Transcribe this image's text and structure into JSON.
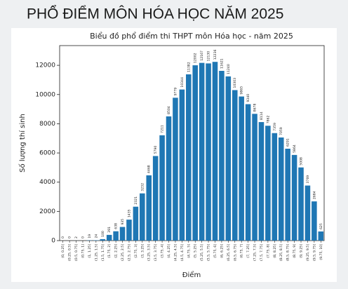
{
  "header": {
    "title": "PHỔ ĐIỂM MÔN HÓA HỌC NĂM 2025"
  },
  "chart_data": {
    "type": "bar",
    "title": "Biểu đồ phổ điểm thi THPT môn Hóa học - năm 2025",
    "xlabel": "Điểm",
    "ylabel": "Số lượng thí sinh",
    "categories": [
      "(0, 0.25]",
      "(0.25, 0.5]",
      "(0.5, 0.75]",
      "(0.75, 1]",
      "(1, 1.25]",
      "(1.25, 1.5]",
      "(1.5, 1.75]",
      "(1.75, 2]",
      "(2, 2.25]",
      "(2.25, 2.5]",
      "(2.5, 2.75]",
      "(2.75, 3]",
      "(3, 3.25]",
      "(3.25, 3.5]",
      "(3.5, 3.75]",
      "(3.75, 4]",
      "(4, 4.25]",
      "(4.25, 4.5]",
      "(4.5, 4.75]",
      "(4.75, 5]",
      "(5, 5.25]",
      "(5.25, 5.5]",
      "(5.5, 5.75]",
      "(5.75, 6]",
      "(6, 6.25]",
      "(6.25, 6.5]",
      "(6.5, 6.75]",
      "(6.75, 7]",
      "(7, 7.25]",
      "(7.25, 7.5]",
      "(7.5, 7.75]",
      "(7.75, 8]",
      "(8, 8.25]",
      "(8.25, 8.5]",
      "(8.5, 8.75]",
      "(8.75, 9]",
      "(9, 9.25]",
      "(9.25, 9.5]",
      "(9.5, 9.75]",
      "(9.75, 10]"
    ],
    "values": [
      0,
      0,
      2,
      0,
      19,
      24,
      100,
      391,
      638,
      935,
      1435,
      2321,
      3232,
      4468,
      5790,
      7211,
      8504,
      9779,
      10344,
      11382,
      12002,
      12167,
      12130,
      12236,
      11621,
      11240,
      10303,
      9865,
      9340,
      8678,
      8114,
      7862,
      7359,
      7059,
      6291,
      5864,
      5008,
      3769,
      2684,
      625
    ],
    "color": "#1f77b4",
    "ylim": [
      0,
      13350
    ],
    "yticks": [
      0,
      2000,
      4000,
      6000,
      8000,
      10000,
      12000
    ]
  }
}
